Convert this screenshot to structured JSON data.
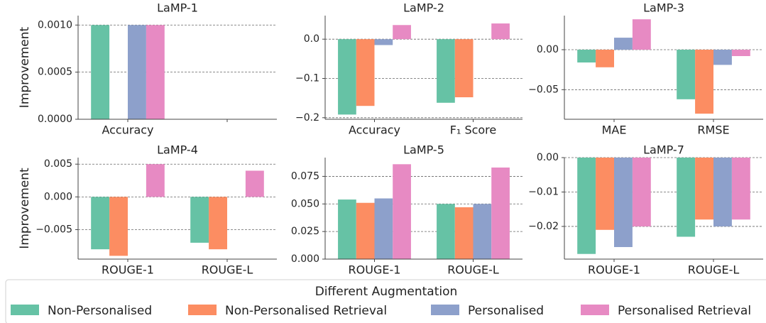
{
  "chart_data": [
    {
      "type": "bar",
      "title": "LaMP-1",
      "ylabel": "Improvement",
      "categories": [
        "Accuracy",
        null
      ],
      "series": [
        {
          "name": "Non-Personalised",
          "color": "#66c2a5",
          "values": [
            0.001,
            null
          ]
        },
        {
          "name": "Non-Personalised Retrieval",
          "color": "#fc8d62",
          "values": [
            0,
            null
          ]
        },
        {
          "name": "Personalised",
          "color": "#8da0cb",
          "values": [
            0.001,
            null
          ]
        },
        {
          "name": "Personalised Retrieval",
          "color": "#e78ac3",
          "values": [
            0.001,
            null
          ]
        }
      ],
      "ylim": [
        0,
        0.0011
      ],
      "yticks": [
        {
          "value": 0,
          "label": "0.0000"
        },
        0.0005,
        {
          "value": 0.001,
          "label": "0.0010"
        }
      ],
      "grid": true
    },
    {
      "type": "bar",
      "title": "LaMP-2",
      "categories": [
        "Accuracy",
        "F₁ Score"
      ],
      "series": [
        {
          "name": "Non-Personalised",
          "color": "#66c2a5",
          "values": [
            -0.192,
            -0.162
          ]
        },
        {
          "name": "Non-Personalised Retrieval",
          "color": "#fc8d62",
          "values": [
            -0.17,
            -0.148
          ]
        },
        {
          "name": "Personalised",
          "color": "#8da0cb",
          "values": [
            -0.015,
            0
          ]
        },
        {
          "name": "Personalised Retrieval",
          "color": "#e78ac3",
          "values": [
            0.036,
            0.04
          ]
        }
      ],
      "ylim": [
        -0.204,
        0.06
      ],
      "yticks": [
        {
          "value": 0,
          "label": "0.0"
        },
        {
          "value": -0.1,
          "label": "−0.1"
        },
        {
          "value": -0.2,
          "label": "−0.2"
        }
      ],
      "grid": true
    },
    {
      "type": "bar",
      "title": "LaMP-3",
      "categories": [
        "MAE",
        "RMSE"
      ],
      "series": [
        {
          "name": "Non-Personalised",
          "color": "#66c2a5",
          "values": [
            -0.016,
            -0.062
          ]
        },
        {
          "name": "Non-Personalised Retrieval",
          "color": "#fc8d62",
          "values": [
            -0.022,
            -0.08
          ]
        },
        {
          "name": "Personalised",
          "color": "#8da0cb",
          "values": [
            0.015,
            -0.019
          ]
        },
        {
          "name": "Personalised Retrieval",
          "color": "#e78ac3",
          "values": [
            0.038,
            -0.008
          ]
        }
      ],
      "ylim": [
        -0.087,
        0.0426
      ],
      "yticks": [
        {
          "value": 0,
          "label": "0.00"
        },
        {
          "value": -0.05,
          "label": "−0.05"
        }
      ],
      "grid": true
    },
    {
      "type": "bar",
      "title": "LaMP-4",
      "ylabel": "Improvement",
      "categories": [
        "ROUGE-1",
        "ROUGE-L"
      ],
      "series": [
        {
          "name": "Non-Personalised",
          "color": "#66c2a5",
          "values": [
            -0.008,
            -0.007
          ]
        },
        {
          "name": "Non-Personalised Retrieval",
          "color": "#fc8d62",
          "values": [
            -0.009,
            -0.008
          ]
        },
        {
          "name": "Personalised",
          "color": "#8da0cb",
          "values": [
            0,
            0
          ]
        },
        {
          "name": "Personalised Retrieval",
          "color": "#e78ac3",
          "values": [
            0.005,
            0.004
          ]
        }
      ],
      "ylim": [
        -0.0095,
        0.006
      ],
      "yticks": [
        0.005,
        {
          "value": 0,
          "label": "0.000"
        },
        {
          "value": -0.005,
          "label": "−0.005"
        }
      ],
      "grid": true
    },
    {
      "type": "bar",
      "title": "LaMP-5",
      "categories": [
        "ROUGE-1",
        "ROUGE-L"
      ],
      "series": [
        {
          "name": "Non-Personalised",
          "color": "#66c2a5",
          "values": [
            0.054,
            0.05
          ]
        },
        {
          "name": "Non-Personalised Retrieval",
          "color": "#fc8d62",
          "values": [
            0.051,
            0.047
          ]
        },
        {
          "name": "Personalised",
          "color": "#8da0cb",
          "values": [
            0.055,
            0.05
          ]
        },
        {
          "name": "Personalised Retrieval",
          "color": "#e78ac3",
          "values": [
            0.086,
            0.083
          ]
        }
      ],
      "ylim": [
        0,
        0.092
      ],
      "yticks": [
        {
          "value": 0,
          "label": "0.000"
        },
        0.025,
        {
          "value": 0.05,
          "label": "0.050"
        },
        0.075
      ],
      "grid": true
    },
    {
      "type": "bar",
      "title": "LaMP-7",
      "categories": [
        "ROUGE-1",
        "ROUGE-L"
      ],
      "series": [
        {
          "name": "Non-Personalised",
          "color": "#66c2a5",
          "values": [
            -0.028,
            -0.023
          ]
        },
        {
          "name": "Non-Personalised Retrieval",
          "color": "#fc8d62",
          "values": [
            -0.021,
            -0.018
          ]
        },
        {
          "name": "Personalised",
          "color": "#8da0cb",
          "values": [
            -0.026,
            -0.02
          ]
        },
        {
          "name": "Personalised Retrieval",
          "color": "#e78ac3",
          "values": [
            -0.02,
            -0.018
          ]
        }
      ],
      "ylim": [
        -0.0295,
        0
      ],
      "yticks": [
        {
          "value": 0,
          "label": "0.00"
        },
        {
          "value": -0.01,
          "label": "−0.01"
        },
        {
          "value": -0.02,
          "label": "−0.02"
        }
      ],
      "grid": true
    }
  ],
  "legend_title": "Different Augmentation"
}
